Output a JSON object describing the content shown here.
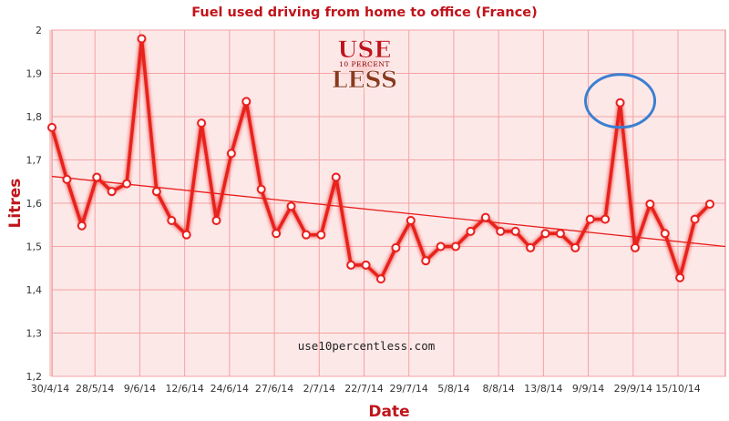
{
  "chart_data": {
    "type": "line",
    "title": "Fuel used driving from home to office (France)",
    "xlabel": "Date",
    "ylabel": "Litres",
    "ylim": [
      1.2,
      2.0
    ],
    "yticks": [
      "1,2",
      "1,3",
      "1,4",
      "1,5",
      "1,6",
      "1,7",
      "1,8",
      "1,9",
      "2"
    ],
    "x_tick_labels": [
      "30/4/14",
      "28/5/14",
      "9/6/14",
      "12/6/14",
      "24/6/14",
      "27/6/14",
      "2/7/14",
      "22/7/14",
      "29/7/14",
      "5/8/14",
      "8/8/14",
      "13/8/14",
      "9/9/14",
      "29/9/14",
      "15/10/14"
    ],
    "grid": true,
    "series": [
      {
        "values": [
          1.775,
          1.655,
          1.548,
          1.66,
          1.627,
          1.645,
          1.98,
          1.627,
          1.56,
          1.527,
          1.785,
          1.56,
          1.715,
          1.835,
          1.632,
          1.53,
          1.593,
          1.527,
          1.527,
          1.66,
          1.457,
          1.457,
          1.425,
          1.497,
          1.56,
          1.467,
          1.5,
          1.5,
          1.535,
          1.567,
          1.535,
          1.535,
          1.497,
          1.53,
          1.53,
          1.497,
          1.563,
          1.563,
          1.832,
          1.497,
          1.598,
          1.53,
          1.428,
          1.563,
          1.598
        ]
      }
    ],
    "trendline": {
      "start": 1.662,
      "end": 1.5
    },
    "highlight_index": 38,
    "annotation": "use10percentless.com",
    "logo": {
      "top": "USE",
      "middle": "10 PERCENT",
      "bottom": "LESS"
    },
    "colors": {
      "line": "#e8201e",
      "marker_fill": "#ffffff",
      "background": "#fde8e8",
      "grid": "#f4a3a3",
      "highlight": "#3b7fd0",
      "title": "#c0141b"
    }
  }
}
